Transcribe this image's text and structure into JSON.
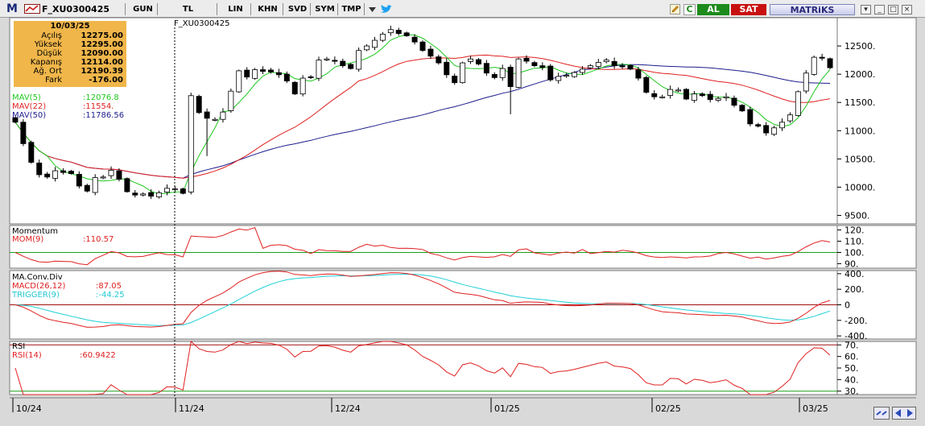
{
  "toolbar": {
    "logo": "M",
    "symbol": "F_XU0300425",
    "period": "GUN",
    "currency": "TL",
    "scale": "LIN",
    "khn": "KHN",
    "svd": "SVD",
    "sym": "SYM",
    "tmp": "TMP",
    "buy": "AL",
    "sell": "SAT",
    "brand": "MATRiKS"
  },
  "info": {
    "date": "10/03/25",
    "rows": [
      {
        "label": "Açılış",
        "value": "12275.00"
      },
      {
        "label": "Yüksek",
        "value": "12295.00"
      },
      {
        "label": "Düşük",
        "value": "12090.00"
      },
      {
        "label": "Kapanış",
        "value": "12114.00"
      },
      {
        "label": "Ağ. Ort",
        "value": "12190.39"
      },
      {
        "label": "Fark",
        "value": "-176.00"
      }
    ]
  },
  "chart_title": "F_XU0300425",
  "legends": {
    "mav5": {
      "name": "MAV(5)",
      "value": ":12076.8",
      "color": "#1ec81e"
    },
    "mav22": {
      "name": "MAV(22)",
      "value": ":11554.",
      "color": "#e02020"
    },
    "mav50": {
      "name": "MAV(50)",
      "value": ":11786.56",
      "color": "#1c1c8c"
    },
    "mom_title": "Momentum",
    "mom": {
      "name": "MOM(9)",
      "value": ":110.57",
      "color": "#e02020"
    },
    "macd_title": "MA.Conv.Div",
    "macd": {
      "name": "MACD(26,12)",
      "value": ":87.05",
      "color": "#e02020"
    },
    "trigger": {
      "name": "TRIGGER(9)",
      "value": ":-44.25",
      "color": "#20d0d8"
    },
    "rsi_title": "RSI",
    "rsi": {
      "name": "RSI(14)",
      "value": ":60.9422",
      "color": "#e02020"
    }
  },
  "chart_data": {
    "type": "candlestick",
    "title": "F_XU0300425",
    "date_labels": [
      "10/24",
      "11/24",
      "12/24",
      "01/25",
      "02/25",
      "03/25"
    ],
    "price_axis": {
      "ticks": [
        9500,
        10000,
        10500,
        11000,
        11500,
        12000,
        12500
      ],
      "tick_labels": [
        "9500.",
        "10000.",
        "10500.",
        "11000.",
        "11500.",
        "12000.",
        "12500."
      ],
      "range": [
        9350,
        13000
      ]
    },
    "mom_axis": {
      "ticks": [
        90,
        100,
        110,
        120
      ],
      "tick_labels": [
        "90.",
        "100.",
        "110.",
        "120."
      ],
      "range": [
        86,
        124
      ],
      "ref": 100
    },
    "macd_axis": {
      "ticks": [
        -400,
        -200,
        0,
        200,
        400
      ],
      "tick_labels": [
        "-400.",
        "-200.",
        "0",
        "200.",
        "400."
      ],
      "range": [
        -440,
        440
      ],
      "ref": 0
    },
    "rsi_axis": {
      "ticks": [
        30,
        40,
        50,
        60,
        70
      ],
      "tick_labels": [
        "30.",
        "40.",
        "50.",
        "60.",
        "70."
      ],
      "range": [
        27,
        73
      ],
      "bands": [
        30,
        70
      ]
    },
    "close": [
      11150,
      10770,
      10440,
      10220,
      10180,
      10290,
      10260,
      10240,
      10020,
      9930,
      10170,
      10180,
      10300,
      10140,
      9920,
      9860,
      9880,
      9840,
      9900,
      9980,
      9970,
      9890,
      11620,
      11320,
      11220,
      11200,
      11330,
      11700,
      12060,
      11950,
      12080,
      12050,
      12040,
      11990,
      11880,
      11650,
      11930,
      11940,
      12250,
      12270,
      12230,
      12150,
      12100,
      12420,
      12500,
      12600,
      12710,
      12790,
      12720,
      12680,
      12570,
      12420,
      12320,
      12200,
      11990,
      11850,
      12200,
      12270,
      12180,
      12020,
      11940,
      12100,
      11780,
      12270,
      12230,
      12150,
      12120,
      11900,
      11960,
      11980,
      12030,
      12090,
      12150,
      12210,
      12250,
      12150,
      12130,
      12090,
      11930,
      11680,
      11600,
      11600,
      11730,
      11720,
      11560,
      11650,
      11620,
      11550,
      11570,
      11600,
      11450,
      11350,
      11120,
      11080,
      10960,
      11050,
      11150,
      11280,
      11690,
      12020,
      12300,
      12290,
      12114
    ]
  },
  "colors": {
    "background": "#ffffff",
    "up": "#ffffff",
    "down": "#000000",
    "axis_text": "#000000",
    "ref_line": "#19a019",
    "band_line": "#a01010"
  }
}
